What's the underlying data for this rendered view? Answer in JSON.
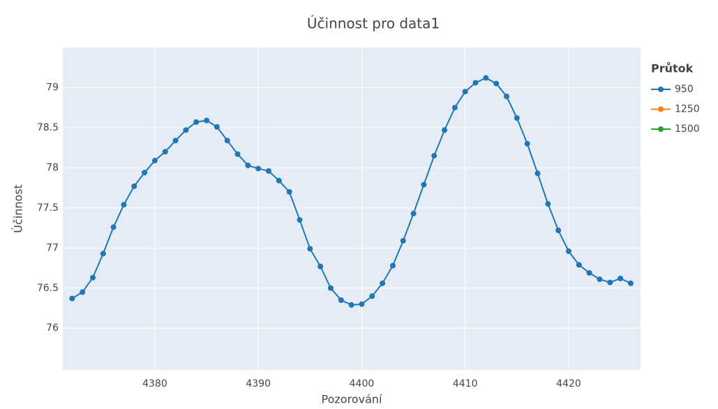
{
  "chart_data": {
    "type": "line",
    "title": "Účinnost pro data1",
    "x_label": "Pozorování",
    "y_label": "Účinnost",
    "legend_title": "Průtok",
    "legend_position": "right",
    "grid": true,
    "x": [
      4372,
      4373,
      4374,
      4375,
      4376,
      4377,
      4378,
      4379,
      4380,
      4381,
      4382,
      4383,
      4384,
      4385,
      4386,
      4387,
      4388,
      4389,
      4390,
      4391,
      4392,
      4393,
      4394,
      4395,
      4396,
      4397,
      4398,
      4399,
      4400,
      4401,
      4402,
      4403,
      4404,
      4405,
      4406,
      4407,
      4408,
      4409,
      4410,
      4411,
      4412,
      4413,
      4414,
      4415,
      4416,
      4417,
      4418,
      4419,
      4420,
      4421,
      4422,
      4423,
      4424,
      4425,
      4426
    ],
    "series": [
      {
        "name": "950",
        "color": "#1f77b4",
        "values": [
          76.37,
          76.45,
          76.63,
          76.93,
          77.26,
          77.54,
          77.77,
          77.94,
          78.09,
          78.2,
          78.34,
          78.47,
          78.57,
          78.59,
          78.51,
          78.34,
          78.17,
          78.03,
          77.99,
          77.96,
          77.84,
          77.7,
          77.35,
          76.99,
          76.77,
          76.5,
          76.35,
          76.29,
          76.3,
          76.4,
          76.56,
          76.78,
          77.09,
          77.43,
          77.79,
          78.15,
          78.47,
          78.75,
          78.95,
          79.06,
          79.12,
          79.05,
          78.89,
          78.62,
          78.3,
          77.93,
          77.55,
          77.22,
          76.96,
          76.79,
          76.69,
          76.61,
          76.57,
          76.62,
          76.56
        ]
      },
      {
        "name": "1250",
        "color": "#ff7f0e",
        "values": [
          null,
          null,
          null,
          null,
          null,
          null,
          null,
          null,
          null,
          null,
          null,
          null,
          null,
          null,
          null,
          null,
          null,
          null,
          null,
          null,
          null,
          null,
          null,
          null,
          null,
          null,
          null,
          null,
          null,
          null,
          null,
          null,
          null,
          null,
          null,
          null,
          null,
          null,
          null,
          null,
          null,
          null,
          null,
          null,
          null,
          null,
          null,
          null,
          null,
          null,
          null,
          null,
          null,
          null,
          null
        ]
      },
      {
        "name": "1500",
        "color": "#2ca02c",
        "values": [
          null,
          null,
          null,
          null,
          null,
          null,
          null,
          null,
          null,
          null,
          null,
          null,
          null,
          null,
          null,
          null,
          null,
          null,
          null,
          null,
          null,
          null,
          null,
          null,
          null,
          null,
          null,
          null,
          null,
          null,
          null,
          null,
          null,
          null,
          null,
          null,
          null,
          null,
          null,
          null,
          null,
          null,
          null,
          null,
          null,
          null,
          null,
          null,
          null,
          null,
          null,
          null,
          null,
          null,
          null
        ]
      }
    ],
    "xlim": [
      4371.1,
      4426.95
    ],
    "xticks": [
      4380,
      4390,
      4400,
      4410,
      4420
    ],
    "ylim": [
      75.48,
      79.5
    ],
    "yticks": [
      76,
      76.5,
      77,
      77.5,
      78,
      78.5,
      79
    ]
  }
}
